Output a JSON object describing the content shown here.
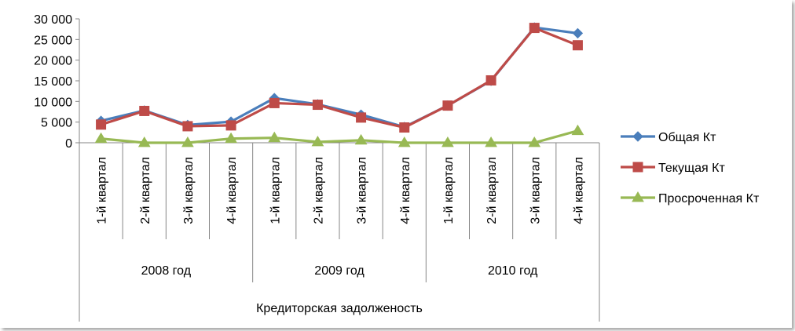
{
  "chart_data": {
    "type": "line",
    "categories": [
      "1-й квартал",
      "2-й квартал",
      "3-й квартал",
      "4-й квартал",
      "1-й квартал",
      "2-й квартал",
      "3-й квартал",
      "4-й квартал",
      "1-й квартал",
      "2-й квартал",
      "3-й квартал",
      "4-й квартал"
    ],
    "groups": [
      {
        "label": "2008 год",
        "span": 4
      },
      {
        "label": "2009 год",
        "span": 4
      },
      {
        "label": "2010 год",
        "span": 4
      }
    ],
    "outer_label": "Кредиторская задолженость",
    "ylim": [
      0,
      30000
    ],
    "yticks": [
      0,
      5000,
      10000,
      15000,
      20000,
      25000,
      30000
    ],
    "ytick_labels": [
      "0",
      "5 000",
      "10 000",
      "15 000",
      "20 000",
      "25 000",
      "30 000"
    ],
    "grid": false,
    "legend_position": "right",
    "series": [
      {
        "name": "Общая Кт",
        "color": "#4A7EBB",
        "marker": "diamond",
        "values": [
          5300,
          7800,
          4300,
          5100,
          10800,
          9300,
          6800,
          3800,
          9000,
          15000,
          27900,
          26500
        ]
      },
      {
        "name": "Текущая Кт",
        "color": "#BE4B48",
        "marker": "square",
        "values": [
          4400,
          7700,
          4000,
          4200,
          9600,
          9200,
          6100,
          3700,
          9000,
          15100,
          27800,
          23600
        ]
      },
      {
        "name": "Просроченная Кт",
        "color": "#98B954",
        "marker": "triangle",
        "values": [
          1000,
          0,
          0,
          1000,
          1200,
          200,
          600,
          0,
          0,
          0,
          0,
          2900
        ]
      }
    ]
  }
}
